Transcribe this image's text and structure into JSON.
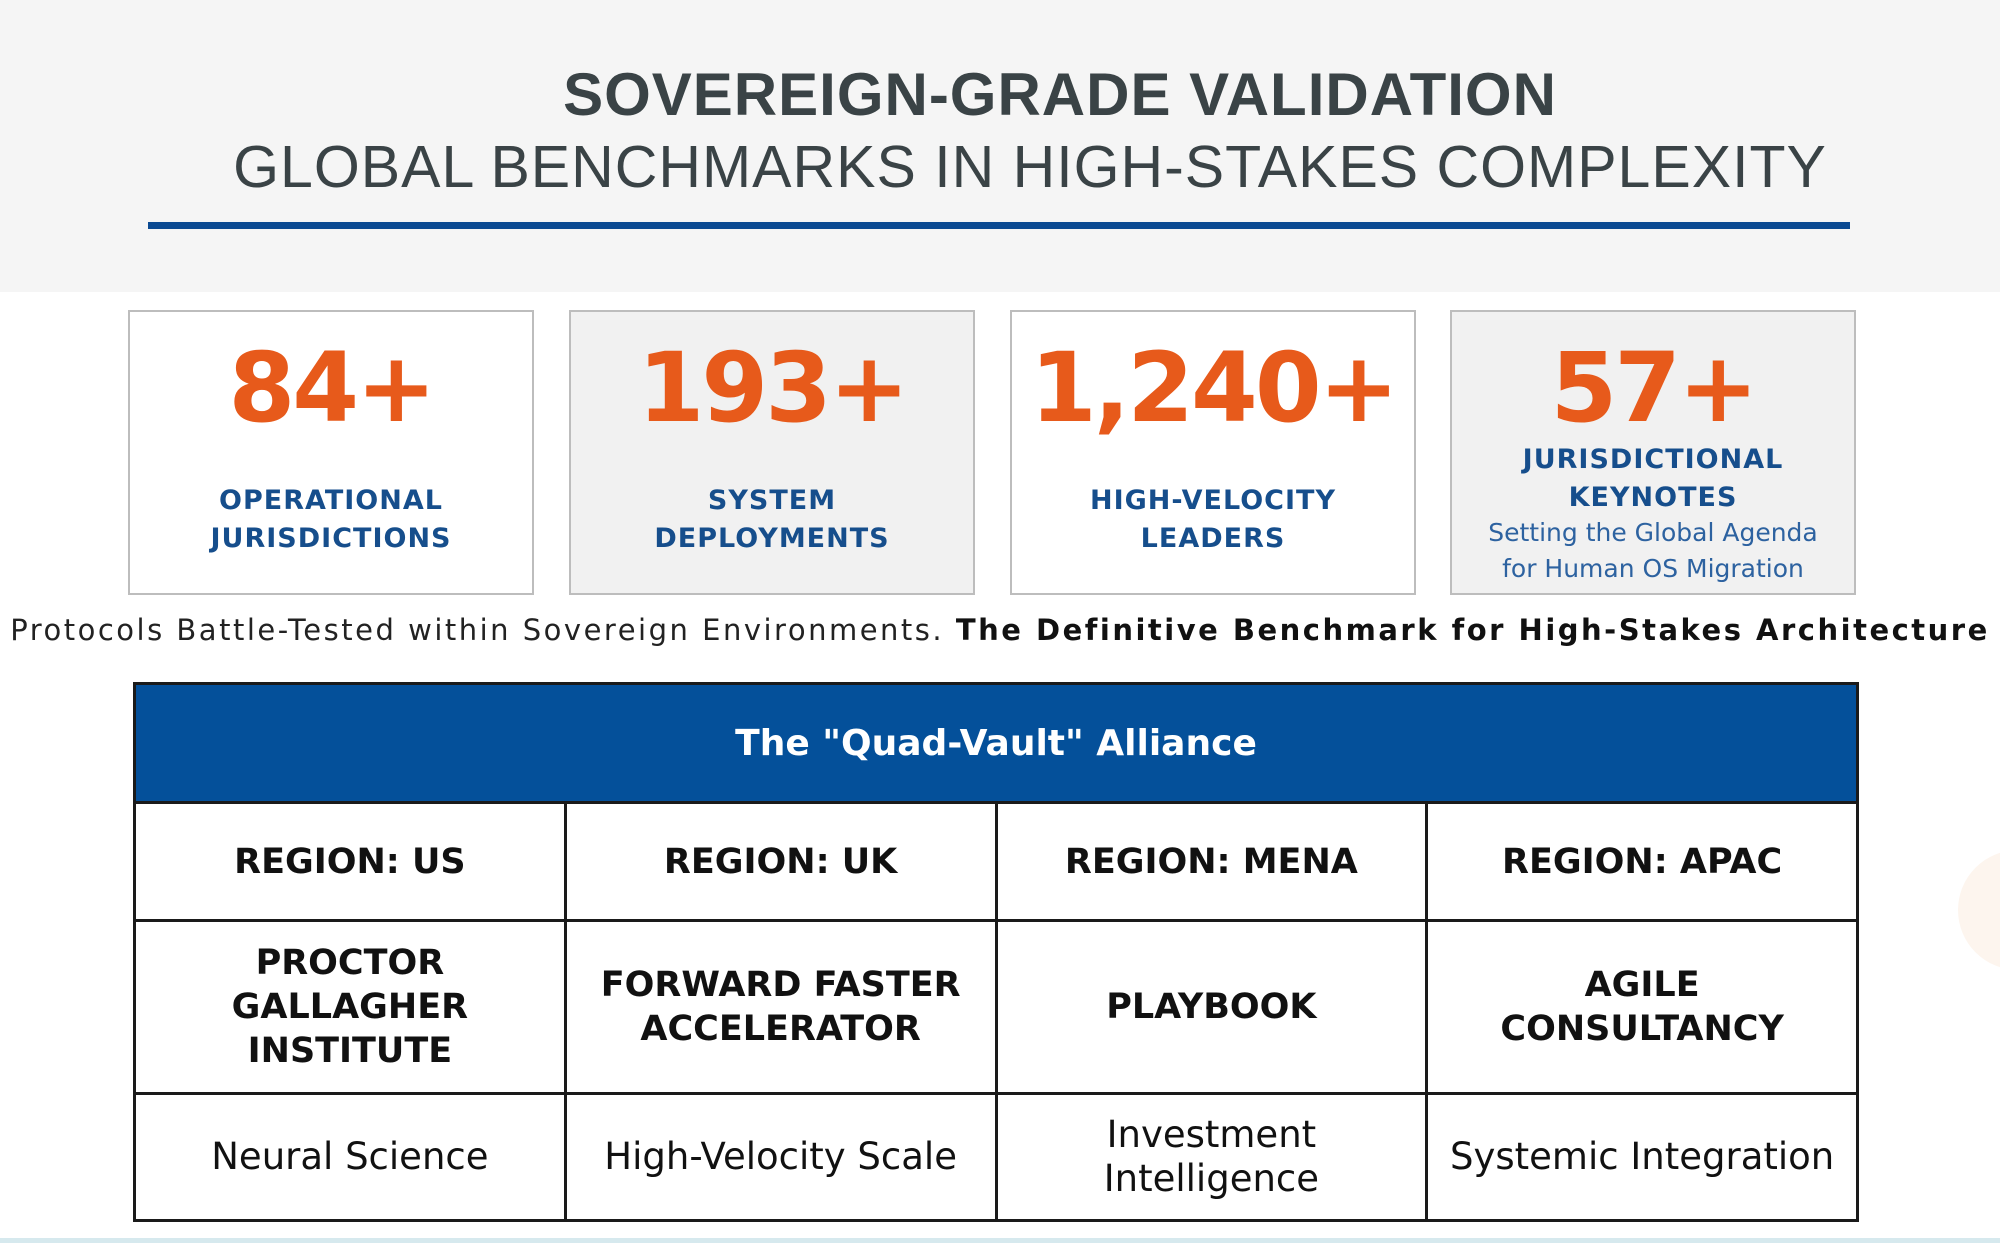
{
  "header": {
    "title": "SOVEREIGN-GRADE VALIDATION",
    "subtitle": "GLOBAL BENCHMARKS IN HIGH-STAKES COMPLEXITY",
    "rule_color": "#0b4a92"
  },
  "stats": [
    {
      "value": "84+",
      "label_line1": "OPERATIONAL",
      "label_line2": "JURISDICTIONS"
    },
    {
      "value": "193+",
      "label_line1": "SYSTEM",
      "label_line2": "DEPLOYMENTS"
    },
    {
      "value": "1,240+",
      "label_line1": "HIGH-VELOCITY",
      "label_line2": "LEADERS"
    },
    {
      "value": "57+",
      "label_line1": "JURISDICTIONAL",
      "label_line2": "KEYNOTES",
      "desc_line1": "Setting the Global Agenda",
      "desc_line2": "for Human OS Migration"
    }
  ],
  "tagline": {
    "regular": "Protocols Battle-Tested within Sovereign Environments.",
    "bold": "The Definitive Benchmark for High-Stakes Architecture"
  },
  "alliance": {
    "caption": "The \"Quad-Vault\" Alliance",
    "regions": [
      "REGION: US",
      "REGION: UK",
      "REGION: MENA",
      "REGION: APAC"
    ],
    "partners": [
      {
        "line1": "PROCTOR",
        "line2": "GALLAGHER",
        "line3": "INSTITUTE"
      },
      {
        "line1": "FORWARD FASTER",
        "line2": "ACCELERATOR"
      },
      {
        "line1": "PLAYBOOK"
      },
      {
        "line1": "AGILE",
        "line2": "CONSULTANCY"
      }
    ],
    "focus": [
      {
        "line1": "Neural Science"
      },
      {
        "line1": "High-Velocity Scale"
      },
      {
        "line1": "Investment",
        "line2": "Intelligence"
      },
      {
        "line1": "Systemic Integration"
      }
    ]
  },
  "colors": {
    "accent_orange": "#e75a1b",
    "label_blue": "#164e8c",
    "table_header_blue": "#04509a"
  }
}
